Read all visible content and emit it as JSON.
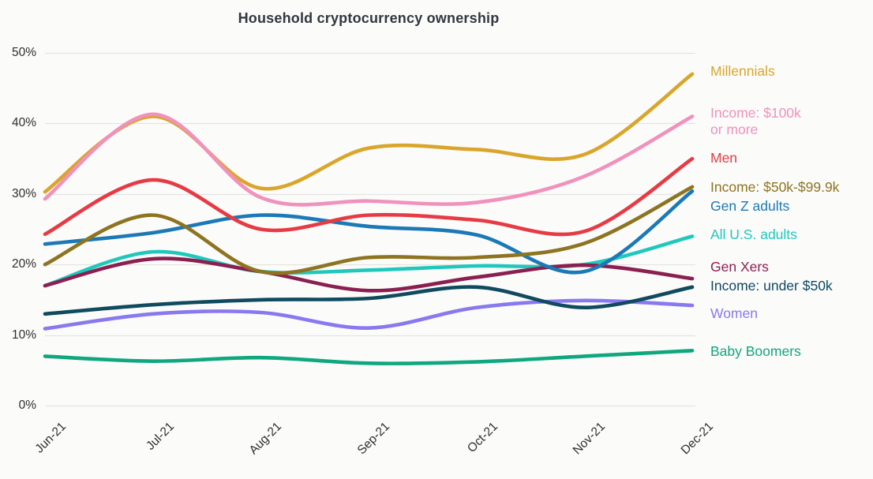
{
  "title": "Household cryptocurrency ownership",
  "chart_data": {
    "type": "line",
    "title": "Household cryptocurrency ownership",
    "x": [
      "Jun-21",
      "Jul-21",
      "Aug-21",
      "Sep-21",
      "Oct-21",
      "Nov-21",
      "Dec-21"
    ],
    "xlabel": "",
    "ylabel": "",
    "ylim": [
      0,
      50
    ],
    "yticks": [
      0,
      10,
      20,
      30,
      40,
      50
    ],
    "ytick_labels": [
      "0%",
      "10%",
      "20%",
      "30%",
      "40%",
      "50%"
    ],
    "grid": true,
    "smoothing": "spline",
    "legend_position": "right",
    "series": [
      {
        "name": "Millennials",
        "legend_label": "Millennials",
        "color": "#D9A62B",
        "values": [
          30.3,
          41,
          30.8,
          36.5,
          36.3,
          35.6,
          47
        ]
      },
      {
        "name": "Income: $100k or more",
        "legend_label": "Income: $100k\nor more",
        "color": "#F092BB",
        "values": [
          29.3,
          41.3,
          29.5,
          29,
          28.8,
          32.5,
          41
        ]
      },
      {
        "name": "Men",
        "legend_label": "Men",
        "color": "#E63B44",
        "values": [
          24.3,
          32,
          25,
          27,
          26.3,
          24.7,
          35
        ]
      },
      {
        "name": "Income: $50k-$99.9k",
        "legend_label": "Income: $50k-$99.9k",
        "color": "#8E7421",
        "values": [
          20,
          27,
          19,
          21,
          21,
          23,
          31
        ]
      },
      {
        "name": "Gen Z adults",
        "legend_label": "Gen Z adults",
        "color": "#1B79B6",
        "values": [
          22.9,
          24.5,
          27,
          25.4,
          24.2,
          19,
          30.4
        ]
      },
      {
        "name": "All U.S. adults",
        "legend_label": "All U.S. adults",
        "color": "#20C8BC",
        "values": [
          17,
          21.8,
          19,
          19.2,
          19.8,
          20,
          24
        ]
      },
      {
        "name": "Gen Xers",
        "legend_label": "Gen Xers",
        "color": "#8B2050",
        "values": [
          17,
          20.8,
          19,
          16.3,
          18.2,
          19.9,
          18
        ]
      },
      {
        "name": "Income: under $50k",
        "legend_label": "Income: under $50k",
        "color": "#0F4A5F",
        "values": [
          13,
          14.3,
          15,
          15.2,
          16.8,
          13.9,
          16.8
        ]
      },
      {
        "name": "Women",
        "legend_label": "Women",
        "color": "#8979EF",
        "values": [
          10.9,
          13,
          13.2,
          11,
          13.9,
          14.9,
          14.2
        ]
      },
      {
        "name": "Baby Boomers",
        "legend_label": "Baby Boomers",
        "color": "#0FA87E",
        "values": [
          7,
          6.3,
          6.8,
          6,
          6.2,
          7,
          7.8
        ]
      }
    ]
  },
  "colors": {
    "grid": "#E4E4E1",
    "title_text": "#31383E",
    "axis_text": "#2E2E2E",
    "background": "#FBFBFA"
  }
}
